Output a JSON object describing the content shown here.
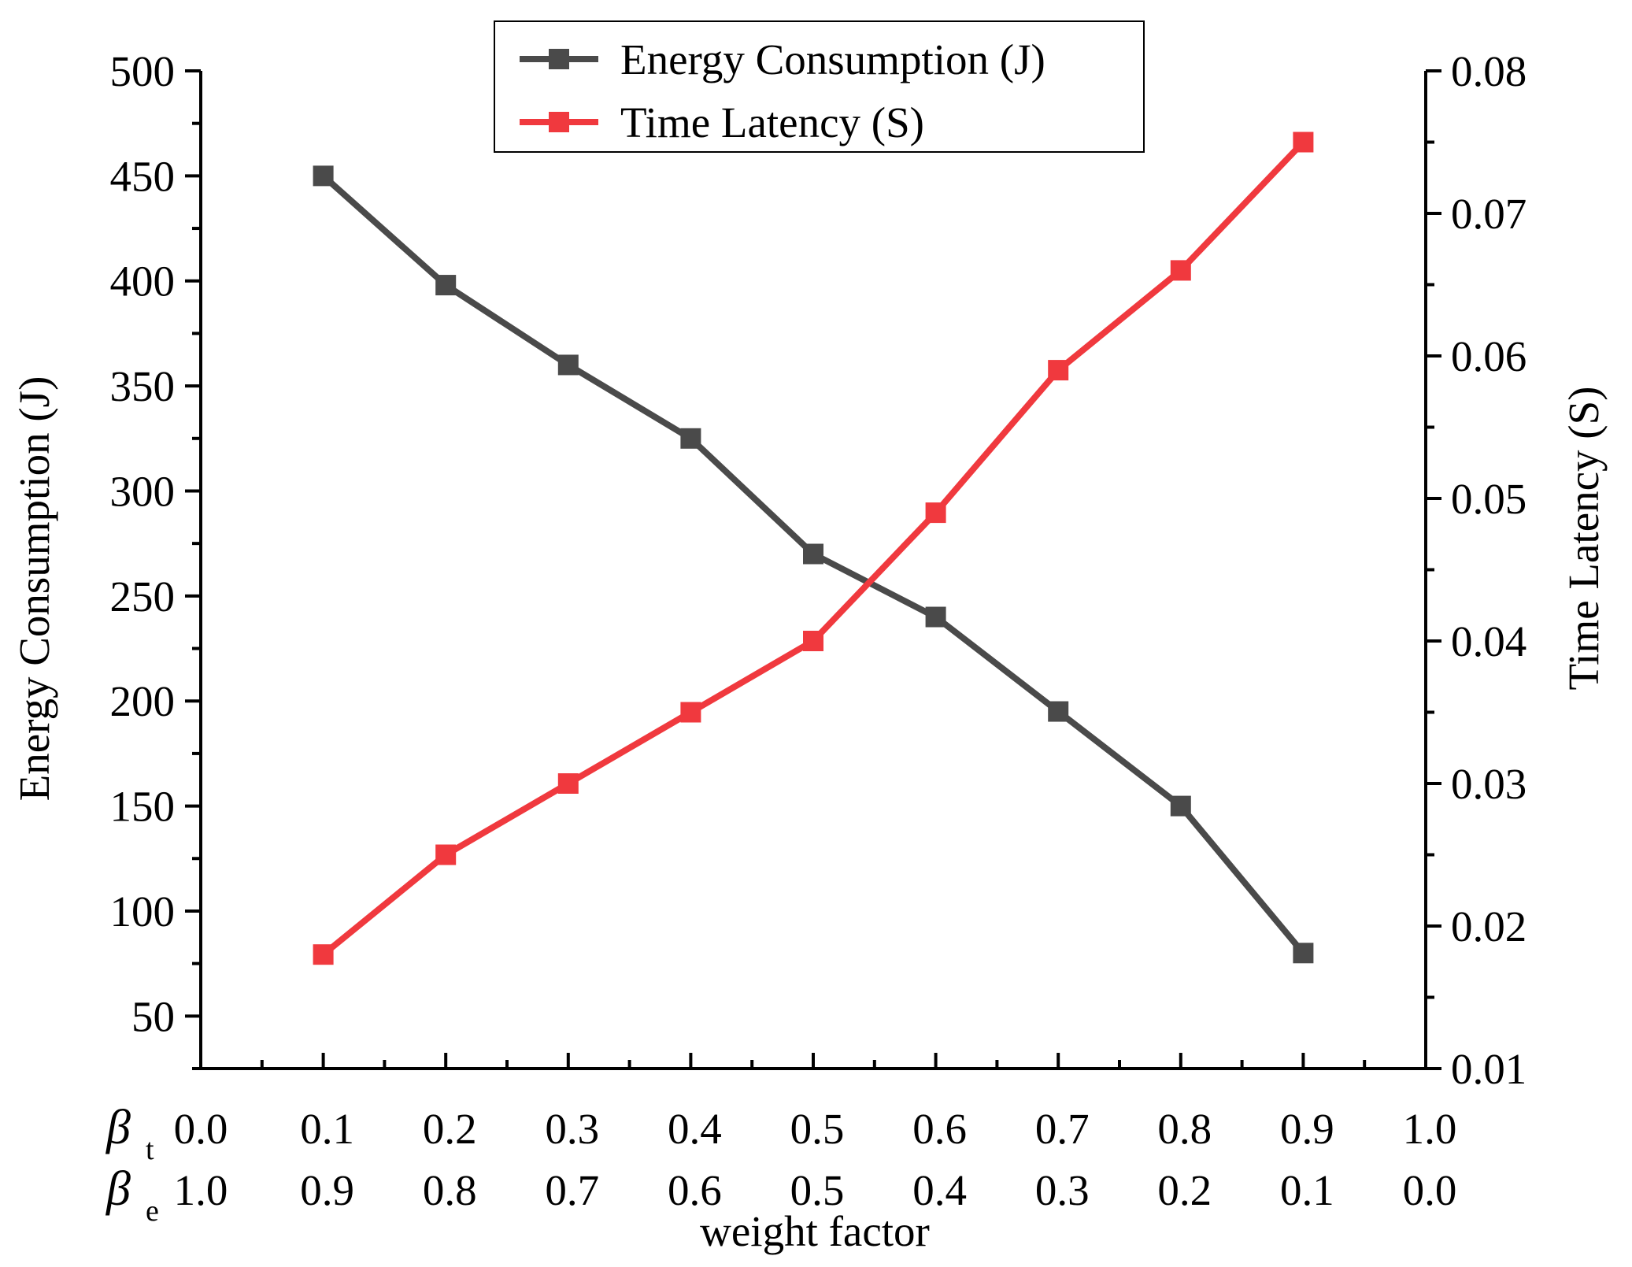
{
  "chart_data": {
    "type": "line",
    "title": "",
    "xlabel": "weight factor",
    "ylabel_left": "Energy Consumption (J)",
    "ylabel_right": "Time Latency (S)",
    "x_rows": [
      {
        "symbol": "β",
        "subscript": "t",
        "values": [
          "0.0",
          "0.1",
          "0.2",
          "0.3",
          "0.4",
          "0.5",
          "0.6",
          "0.7",
          "0.8",
          "0.9",
          "1.0"
        ]
      },
      {
        "symbol": "β",
        "subscript": "e",
        "values": [
          "1.0",
          "0.9",
          "0.8",
          "0.7",
          "0.6",
          "0.5",
          "0.4",
          "0.3",
          "0.2",
          "0.1",
          "0.0"
        ]
      }
    ],
    "x": [
      0.0,
      0.1,
      0.2,
      0.3,
      0.4,
      0.5,
      0.6,
      0.7,
      0.8,
      0.9,
      1.0
    ],
    "xlim": [
      0.0,
      1.0
    ],
    "ylim_left": [
      25,
      500
    ],
    "yticks_left": [
      "50",
      "100",
      "150",
      "200",
      "250",
      "300",
      "350",
      "400",
      "450",
      "500"
    ],
    "ylim_right": [
      0.01,
      0.08
    ],
    "yticks_right": [
      "0.01",
      "0.02",
      "0.03",
      "0.04",
      "0.05",
      "0.06",
      "0.07",
      "0.08"
    ],
    "legend_position": "top-center",
    "series": [
      {
        "name": "Energy Consumption (J)",
        "axis": "left",
        "color": "#4a4a4a",
        "x": [
          0.1,
          0.2,
          0.3,
          0.4,
          0.5,
          0.6,
          0.7,
          0.8,
          0.9
        ],
        "values": [
          450,
          398,
          360,
          325,
          270,
          240,
          195,
          150,
          80
        ]
      },
      {
        "name": "Time Latency (S)",
        "axis": "right",
        "color": "#f0393e",
        "x": [
          0.1,
          0.2,
          0.3,
          0.4,
          0.5,
          0.6,
          0.7,
          0.8,
          0.9
        ],
        "values": [
          0.018,
          0.025,
          0.03,
          0.035,
          0.04,
          0.049,
          0.059,
          0.066,
          0.075
        ]
      }
    ]
  }
}
